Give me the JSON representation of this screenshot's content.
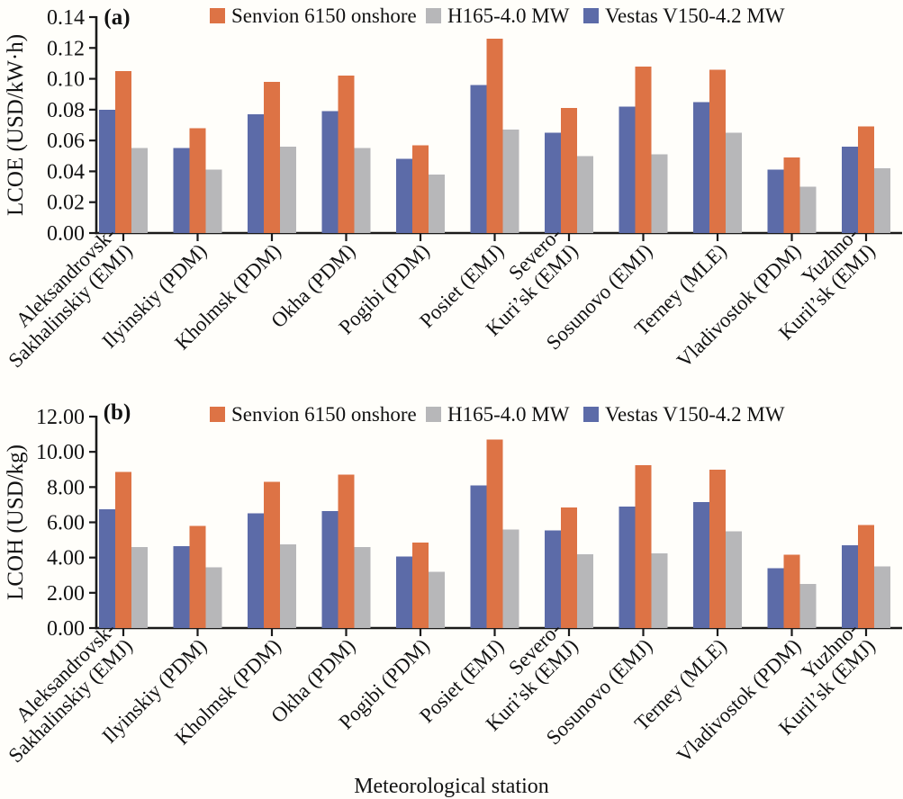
{
  "figure": {
    "background": "#fffefa",
    "axis_color": "#1a1a1a",
    "x_axis_title": "Meteorological station",
    "panel_letters": [
      "(a)",
      "(b)"
    ]
  },
  "legend": {
    "position": "top-inside",
    "items": [
      {
        "label": "Senvion 6150 onshore",
        "color": "#dd7345"
      },
      {
        "label": "H165-4.0 MW",
        "color": "#b7b7b9"
      },
      {
        "label": "Vestas V150-4.2 MW",
        "color": "#5c6ba8"
      }
    ]
  },
  "chart_data": [
    {
      "type": "bar",
      "panel_label": "(a)",
      "title": "",
      "xlabel": "Meteorological station",
      "ylabel": "LCOE (USD/kW·h)",
      "ylim": [
        0,
        0.14
      ],
      "ytick_step": 0.02,
      "ytick_decimals": 2,
      "grid": false,
      "legend_position": "top-inside",
      "categories": [
        {
          "label": "Aleksandrovsk-Sakhalinskiy (EMJ)",
          "lines": [
            "Aleksandrovsk-",
            "Sakhalinskiy (EMJ)"
          ]
        },
        {
          "label": "Ilyinskiy (PDM)",
          "lines": [
            "Ilyinskiy (PDM)"
          ]
        },
        {
          "label": "Kholmsk (PDM)",
          "lines": [
            "Kholmsk (PDM)"
          ]
        },
        {
          "label": "Okha (PDM)",
          "lines": [
            "Okha (PDM)"
          ]
        },
        {
          "label": "Pogibi (PDM)",
          "lines": [
            "Pogibi (PDM)"
          ]
        },
        {
          "label": "Posiet (EMJ)",
          "lines": [
            "Posiet (EMJ)"
          ]
        },
        {
          "label": "Severo-Kuri’sk (EMJ)",
          "lines": [
            "Severo-",
            "Kuri’sk (EMJ)"
          ]
        },
        {
          "label": "Sosunovo (EMJ)",
          "lines": [
            "Sosunovo (EMJ)"
          ]
        },
        {
          "label": "Terney (MLE)",
          "lines": [
            "Terney (MLE)"
          ]
        },
        {
          "label": "Vladivostok (PDM)",
          "lines": [
            "Vladivostok (PDM)"
          ]
        },
        {
          "label": "Yuzhno-Kuril’sk (EMJ)",
          "lines": [
            "Yuzhno-",
            "Kuril’sk (EMJ)"
          ]
        }
      ],
      "series": [
        {
          "name": "Vestas V150-4.2 MW",
          "color": "#5c6ba8",
          "values": [
            0.08,
            0.055,
            0.077,
            0.079,
            0.048,
            0.096,
            0.065,
            0.082,
            0.085,
            0.041,
            0.056
          ]
        },
        {
          "name": "Senvion 6150 onshore",
          "color": "#dd7345",
          "values": [
            0.105,
            0.068,
            0.098,
            0.102,
            0.057,
            0.126,
            0.081,
            0.108,
            0.106,
            0.049,
            0.069
          ]
        },
        {
          "name": "H165-4.0 MW",
          "color": "#b7b7b9",
          "values": [
            0.055,
            0.041,
            0.056,
            0.055,
            0.038,
            0.067,
            0.05,
            0.051,
            0.065,
            0.03,
            0.042
          ]
        }
      ]
    },
    {
      "type": "bar",
      "panel_label": "(b)",
      "title": "",
      "xlabel": "Meteorological station",
      "ylabel": "LCOH (USD/kg)",
      "ylim": [
        0,
        12
      ],
      "ytick_step": 2,
      "ytick_decimals": 2,
      "grid": false,
      "legend_position": "top-inside",
      "categories": [
        {
          "label": "Aleksandrovsk-Sakhalinskiy (EMJ)",
          "lines": [
            "Aleksandrovsk-",
            "Sakhalinskiy (EMJ)"
          ]
        },
        {
          "label": "Ilyinskiy (PDM)",
          "lines": [
            "Ilyinskiy (PDM)"
          ]
        },
        {
          "label": "Kholmsk (PDM)",
          "lines": [
            "Kholmsk (PDM)"
          ]
        },
        {
          "label": "Okha (PDM)",
          "lines": [
            "Okha (PDM)"
          ]
        },
        {
          "label": "Pogibi (PDM)",
          "lines": [
            "Pogibi (PDM)"
          ]
        },
        {
          "label": "Posiet (EMJ)",
          "lines": [
            "Posiet (EMJ)"
          ]
        },
        {
          "label": "Severo-Kuri’sk (EMJ)",
          "lines": [
            "Severo-",
            "Kuri’sk (EMJ)"
          ]
        },
        {
          "label": "Sosunovo (EMJ)",
          "lines": [
            "Sosunovo (EMJ)"
          ]
        },
        {
          "label": "Terney (MLE)",
          "lines": [
            "Terney (MLE)"
          ]
        },
        {
          "label": "Vladivostok (PDM)",
          "lines": [
            "Vladivostok (PDM)"
          ]
        },
        {
          "label": "Yuzhno-Kuril’sk (EMJ)",
          "lines": [
            "Yuzhno-",
            "Kuril’sk (EMJ)"
          ]
        }
      ],
      "series": [
        {
          "name": "Vestas V150-4.2 MW",
          "color": "#5c6ba8",
          "values": [
            6.75,
            4.65,
            6.5,
            6.65,
            4.05,
            8.1,
            5.55,
            6.9,
            7.15,
            3.4,
            4.7
          ]
        },
        {
          "name": "Senvion 6150 onshore",
          "color": "#dd7345",
          "values": [
            8.85,
            5.8,
            8.3,
            8.7,
            4.85,
            10.7,
            6.85,
            9.25,
            9.0,
            4.15,
            5.85
          ]
        },
        {
          "name": "H165-4.0 MW",
          "color": "#b7b7b9",
          "values": [
            4.6,
            3.45,
            4.75,
            4.6,
            3.2,
            5.6,
            4.2,
            4.25,
            5.5,
            2.5,
            3.5
          ]
        }
      ]
    }
  ]
}
